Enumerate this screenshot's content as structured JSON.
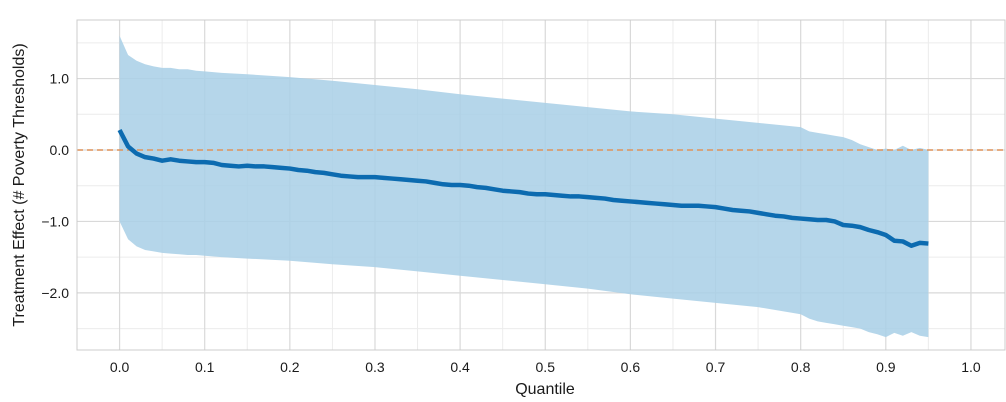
{
  "chart_data": {
    "type": "line",
    "title": "",
    "xlabel": "Quantile",
    "ylabel": "Treatment Effect (# Poverty Thresholds)",
    "xlim": [
      -0.05,
      1.04
    ],
    "ylim": [
      -2.8,
      1.82
    ],
    "x_ticks": [
      0.0,
      0.1,
      0.2,
      0.3,
      0.4,
      0.5,
      0.6,
      0.7,
      0.8,
      0.9,
      1.0
    ],
    "x_tick_labels": [
      "0.0",
      "0.1",
      "0.2",
      "0.3",
      "0.4",
      "0.5",
      "0.6",
      "0.7",
      "0.8",
      "0.9",
      "1.0"
    ],
    "y_ticks": [
      1.0,
      0.0,
      -1.0,
      -2.0
    ],
    "y_tick_labels": [
      "1.0",
      "0.0",
      "−1.0",
      "−2.0"
    ],
    "grid": true,
    "reference_line": {
      "y": 0.0,
      "style": "dashed",
      "color": "#e0945a"
    },
    "colors": {
      "line": "#0c6bb0",
      "band": "#a8cfe6",
      "grid": "#d9d9d9",
      "grid_minor": "#ececec",
      "frame": "#cccccc"
    },
    "series": [
      {
        "kind": "line",
        "x": [
          0.0,
          0.01,
          0.02,
          0.03,
          0.04,
          0.05,
          0.06,
          0.07,
          0.08,
          0.09,
          0.1,
          0.11,
          0.12,
          0.13,
          0.14,
          0.15,
          0.16,
          0.17,
          0.18,
          0.19,
          0.2,
          0.21,
          0.22,
          0.23,
          0.24,
          0.25,
          0.26,
          0.27,
          0.28,
          0.29,
          0.3,
          0.31,
          0.32,
          0.33,
          0.34,
          0.35,
          0.36,
          0.37,
          0.38,
          0.39,
          0.4,
          0.41,
          0.42,
          0.43,
          0.44,
          0.45,
          0.46,
          0.47,
          0.48,
          0.49,
          0.5,
          0.51,
          0.52,
          0.53,
          0.54,
          0.55,
          0.56,
          0.57,
          0.58,
          0.59,
          0.6,
          0.61,
          0.62,
          0.63,
          0.64,
          0.65,
          0.66,
          0.67,
          0.68,
          0.69,
          0.7,
          0.71,
          0.72,
          0.73,
          0.74,
          0.75,
          0.76,
          0.77,
          0.78,
          0.79,
          0.8,
          0.81,
          0.82,
          0.83,
          0.84,
          0.85,
          0.86,
          0.87,
          0.88,
          0.89,
          0.9,
          0.91,
          0.92,
          0.93,
          0.94,
          0.95
        ],
        "y": [
          0.28,
          0.05,
          -0.05,
          -0.1,
          -0.12,
          -0.15,
          -0.13,
          -0.15,
          -0.16,
          -0.17,
          -0.17,
          -0.18,
          -0.21,
          -0.22,
          -0.23,
          -0.22,
          -0.23,
          -0.23,
          -0.24,
          -0.25,
          -0.26,
          -0.28,
          -0.29,
          -0.31,
          -0.32,
          -0.34,
          -0.36,
          -0.37,
          -0.38,
          -0.38,
          -0.38,
          -0.39,
          -0.4,
          -0.41,
          -0.42,
          -0.43,
          -0.44,
          -0.46,
          -0.48,
          -0.49,
          -0.49,
          -0.5,
          -0.52,
          -0.53,
          -0.55,
          -0.57,
          -0.58,
          -0.59,
          -0.61,
          -0.62,
          -0.62,
          -0.63,
          -0.64,
          -0.65,
          -0.65,
          -0.66,
          -0.67,
          -0.68,
          -0.7,
          -0.71,
          -0.72,
          -0.73,
          -0.74,
          -0.75,
          -0.76,
          -0.77,
          -0.78,
          -0.78,
          -0.78,
          -0.79,
          -0.8,
          -0.82,
          -0.84,
          -0.85,
          -0.86,
          -0.88,
          -0.9,
          -0.92,
          -0.93,
          -0.95,
          -0.96,
          -0.97,
          -0.98,
          -0.98,
          -1.0,
          -1.05,
          -1.06,
          -1.08,
          -1.12,
          -1.15,
          -1.19,
          -1.27,
          -1.28,
          -1.34,
          -1.3,
          -1.31
        ]
      },
      {
        "kind": "band",
        "x": [
          0.0,
          0.01,
          0.02,
          0.03,
          0.04,
          0.05,
          0.06,
          0.07,
          0.08,
          0.09,
          0.1,
          0.12,
          0.15,
          0.2,
          0.25,
          0.3,
          0.35,
          0.4,
          0.45,
          0.5,
          0.55,
          0.6,
          0.65,
          0.7,
          0.75,
          0.8,
          0.81,
          0.82,
          0.83,
          0.84,
          0.85,
          0.86,
          0.87,
          0.88,
          0.89,
          0.9,
          0.91,
          0.92,
          0.93,
          0.94,
          0.95
        ],
        "upper": [
          1.6,
          1.33,
          1.25,
          1.2,
          1.17,
          1.15,
          1.15,
          1.13,
          1.13,
          1.11,
          1.1,
          1.08,
          1.06,
          1.02,
          0.97,
          0.91,
          0.85,
          0.78,
          0.72,
          0.66,
          0.6,
          0.54,
          0.5,
          0.44,
          0.38,
          0.32,
          0.26,
          0.24,
          0.22,
          0.2,
          0.18,
          0.14,
          0.08,
          0.04,
          0.0,
          0.02,
          0.0,
          0.06,
          0.0,
          0.03,
          0.0
        ],
        "lower": [
          -1.0,
          -1.25,
          -1.35,
          -1.4,
          -1.42,
          -1.44,
          -1.45,
          -1.46,
          -1.47,
          -1.47,
          -1.48,
          -1.5,
          -1.52,
          -1.55,
          -1.6,
          -1.64,
          -1.7,
          -1.76,
          -1.82,
          -1.88,
          -1.94,
          -2.02,
          -2.08,
          -2.14,
          -2.2,
          -2.3,
          -2.36,
          -2.4,
          -2.42,
          -2.44,
          -2.46,
          -2.48,
          -2.5,
          -2.55,
          -2.58,
          -2.62,
          -2.56,
          -2.6,
          -2.55,
          -2.6,
          -2.62
        ]
      }
    ]
  }
}
